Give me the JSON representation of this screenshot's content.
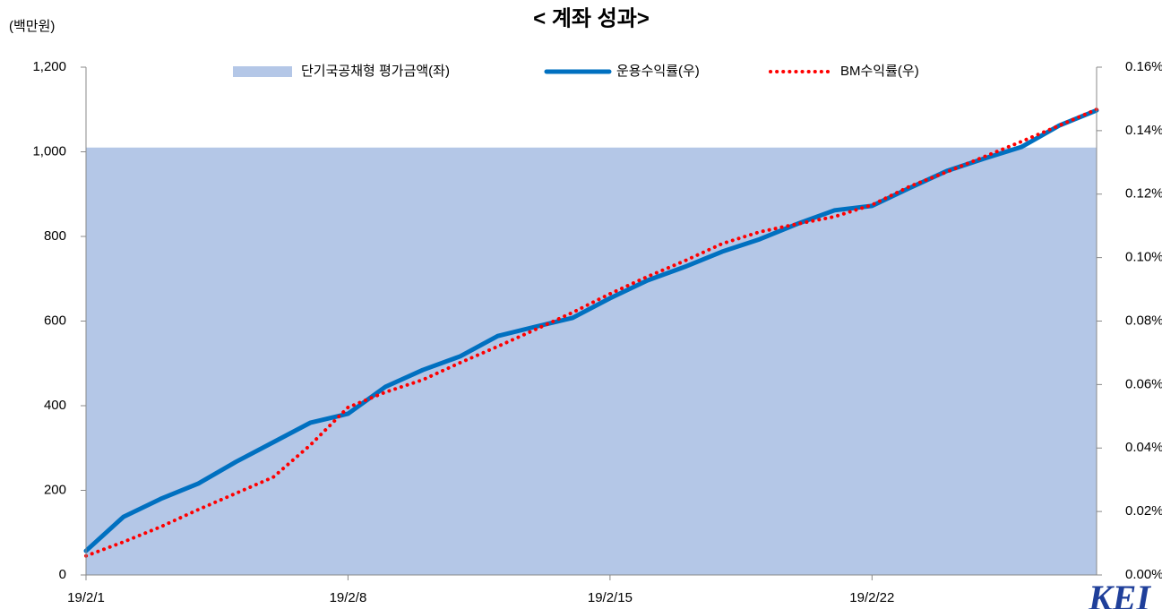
{
  "chart_data": {
    "type": "combo",
    "title": "< 계좌 성과>",
    "y_unit_label": "(백만원)",
    "categories": [
      "19/2/1",
      null,
      null,
      null,
      null,
      null,
      null,
      "19/2/8",
      null,
      null,
      null,
      null,
      null,
      null,
      "19/2/15",
      null,
      null,
      null,
      null,
      null,
      null,
      "19/2/22",
      null,
      null,
      null,
      null,
      null,
      null
    ],
    "ylim": [
      0,
      1200
    ],
    "yticks": [
      0,
      200,
      400,
      600,
      800,
      {
        "value": 1000,
        "label": "1,000"
      },
      {
        "value": 1200,
        "label": "1,200"
      }
    ],
    "y2lim": [
      0,
      0.16
    ],
    "y2ticks": [
      {
        "value": 0,
        "label": "0.00%"
      },
      {
        "value": 0.02,
        "label": "0.02%"
      },
      {
        "value": 0.04,
        "label": "0.04%"
      },
      {
        "value": 0.06,
        "label": "0.06%"
      },
      {
        "value": 0.08,
        "label": "0.08%"
      },
      {
        "value": 0.1,
        "label": "0.10%"
      },
      {
        "value": 0.12,
        "label": "0.12%"
      },
      {
        "value": 0.14,
        "label": "0.14%"
      },
      {
        "value": 0.16,
        "label": "0.16%"
      }
    ],
    "legend": "top",
    "grid": false,
    "series": [
      {
        "name": "단기국공채형 평가금액(좌)",
        "type": "area",
        "color": "#b4c7e7",
        "values": [
          1010,
          1010,
          1010,
          1010,
          1010,
          1010,
          1010,
          1010,
          1010,
          1010,
          1010,
          1010,
          1010,
          1010,
          1010,
          1010,
          1010,
          1010,
          1010,
          1010,
          1010,
          1010,
          1010,
          1010,
          1010,
          1010,
          1010,
          1010
        ]
      },
      {
        "name": "운용수익률(우)",
        "type": "line",
        "style": "solid",
        "axis": "y2",
        "color": "#0070c0",
        "values": [
          0.0076,
          0.0183,
          0.024,
          0.0288,
          0.0356,
          0.0418,
          0.048,
          0.0508,
          0.0593,
          0.0646,
          0.0689,
          0.0753,
          0.0782,
          0.081,
          0.0872,
          0.0928,
          0.0971,
          0.1019,
          0.1058,
          0.1106,
          0.1149,
          0.1163,
          0.1219,
          0.1273,
          0.1312,
          0.1349,
          0.1416,
          0.1464
        ]
      },
      {
        "name": "BM수익률(우)",
        "type": "line",
        "style": "dotted",
        "axis": "y2",
        "color": "#ff0000",
        "values": [
          0.006,
          0.0104,
          0.0152,
          0.0206,
          0.0257,
          0.0308,
          0.041,
          0.0528,
          0.0576,
          0.0615,
          0.0669,
          0.072,
          0.0773,
          0.0827,
          0.0886,
          0.094,
          0.099,
          0.1044,
          0.1081,
          0.1106,
          0.1129,
          0.1166,
          0.1224,
          0.127,
          0.1318,
          0.1366,
          0.1416,
          0.1467
        ]
      }
    ],
    "logo": "KEI"
  }
}
